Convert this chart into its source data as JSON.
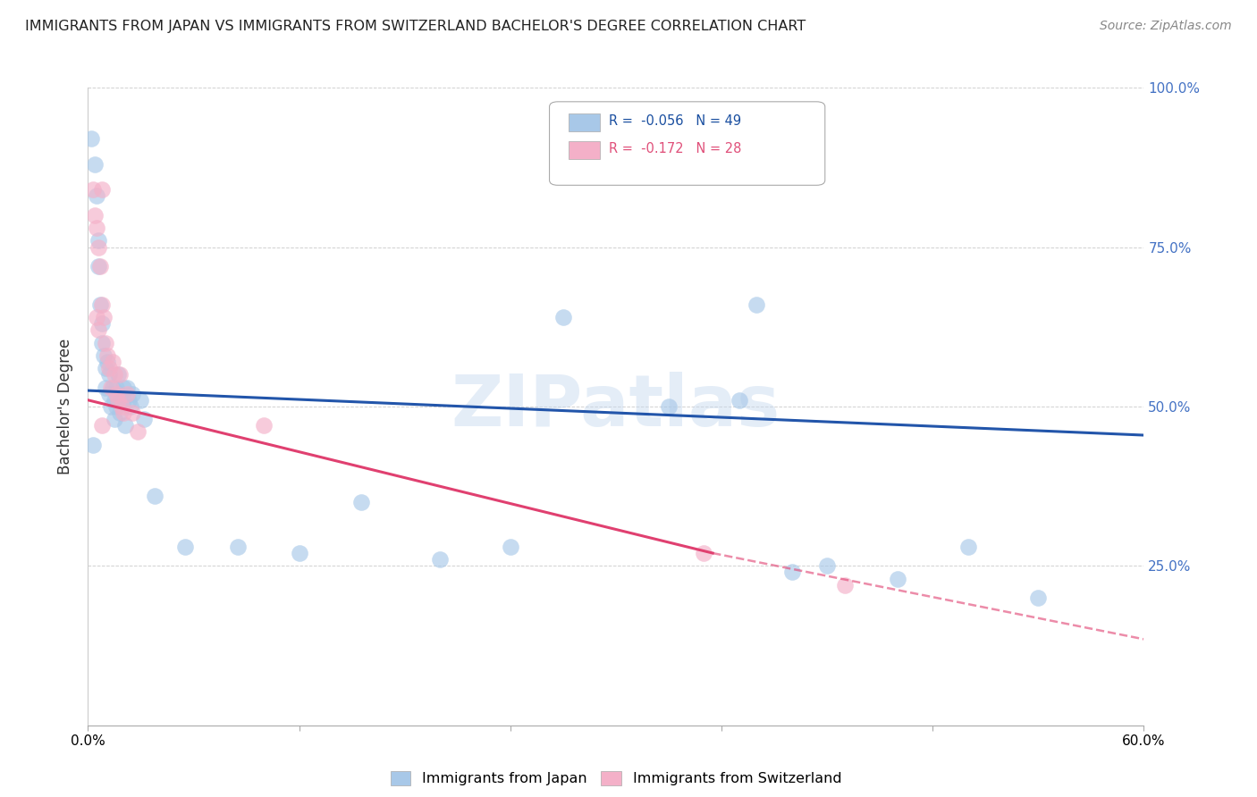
{
  "title": "IMMIGRANTS FROM JAPAN VS IMMIGRANTS FROM SWITZERLAND BACHELOR'S DEGREE CORRELATION CHART",
  "source_text": "Source: ZipAtlas.com",
  "ylabel": "Bachelor's Degree",
  "xmin": 0.0,
  "xmax": 0.6,
  "ymin": 0.0,
  "ymax": 1.0,
  "japan_color": "#a8c8e8",
  "switzerland_color": "#f4b0c8",
  "japan_line_color": "#2255aa",
  "switzerland_line_color": "#e04070",
  "background_color": "#ffffff",
  "watermark_text": "ZIPatlas",
  "japan_x": [
    0.002,
    0.004,
    0.005,
    0.006,
    0.006,
    0.007,
    0.008,
    0.008,
    0.009,
    0.01,
    0.01,
    0.011,
    0.012,
    0.012,
    0.013,
    0.014,
    0.015,
    0.015,
    0.016,
    0.016,
    0.017,
    0.018,
    0.018,
    0.02,
    0.02,
    0.021,
    0.022,
    0.023,
    0.024,
    0.025,
    0.03,
    0.032,
    0.038,
    0.055,
    0.085,
    0.12,
    0.155,
    0.2,
    0.24,
    0.27,
    0.33,
    0.37,
    0.4,
    0.42,
    0.46,
    0.5,
    0.54,
    0.003,
    0.38
  ],
  "japan_y": [
    0.92,
    0.88,
    0.83,
    0.76,
    0.72,
    0.66,
    0.63,
    0.6,
    0.58,
    0.56,
    0.53,
    0.57,
    0.55,
    0.52,
    0.5,
    0.53,
    0.51,
    0.48,
    0.53,
    0.5,
    0.55,
    0.52,
    0.49,
    0.53,
    0.51,
    0.47,
    0.53,
    0.51,
    0.5,
    0.52,
    0.51,
    0.48,
    0.36,
    0.28,
    0.28,
    0.27,
    0.35,
    0.26,
    0.28,
    0.64,
    0.5,
    0.51,
    0.24,
    0.25,
    0.23,
    0.28,
    0.2,
    0.44,
    0.66
  ],
  "switzerland_x": [
    0.003,
    0.004,
    0.005,
    0.006,
    0.007,
    0.008,
    0.008,
    0.009,
    0.01,
    0.011,
    0.012,
    0.013,
    0.014,
    0.015,
    0.016,
    0.017,
    0.018,
    0.019,
    0.02,
    0.022,
    0.025,
    0.028,
    0.1,
    0.005,
    0.006,
    0.008,
    0.35,
    0.43
  ],
  "switzerland_y": [
    0.84,
    0.8,
    0.78,
    0.75,
    0.72,
    0.66,
    0.84,
    0.64,
    0.6,
    0.58,
    0.56,
    0.53,
    0.57,
    0.55,
    0.52,
    0.51,
    0.55,
    0.5,
    0.49,
    0.52,
    0.49,
    0.46,
    0.47,
    0.64,
    0.62,
    0.47,
    0.27,
    0.22
  ],
  "japan_line_x0": 0.0,
  "japan_line_y0": 0.525,
  "japan_line_x1": 0.6,
  "japan_line_y1": 0.455,
  "sw_line_x0": 0.0,
  "sw_line_y0": 0.51,
  "sw_line_x1_solid": 0.355,
  "sw_line_y1_solid": 0.27,
  "sw_line_x1_dash": 0.6,
  "sw_line_y1_dash": 0.135
}
